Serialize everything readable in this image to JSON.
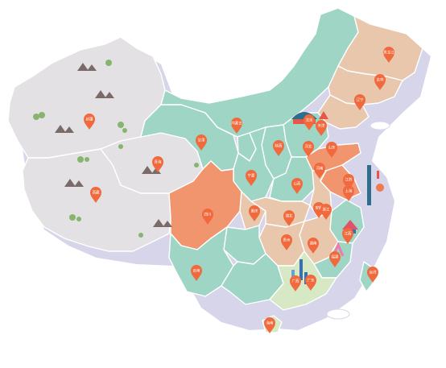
{
  "palette": {
    "gray": "#e3e1e3",
    "teal": "#9ed5c5",
    "tan": "#e8c7ad",
    "orange": "#f1956e",
    "deep_orange": "#ee7a4e",
    "pale_green": "#d6e8c4",
    "pin": "#f06a3d",
    "shadow": "#cfcde6",
    "mountain": "#7a6a68",
    "tree": "#86b56f"
  },
  "map": {
    "provinces": [
      {
        "id": "xinjiang",
        "tone": "gray"
      },
      {
        "id": "tibet",
        "tone": "gray"
      },
      {
        "id": "qinghai",
        "tone": "gray"
      },
      {
        "id": "gansu",
        "tone": "teal"
      },
      {
        "id": "inner-mongolia",
        "tone": "teal"
      },
      {
        "id": "heilongjiang",
        "tone": "tan"
      },
      {
        "id": "jilin",
        "tone": "tan"
      },
      {
        "id": "liaoning",
        "tone": "tan"
      },
      {
        "id": "ningxia",
        "tone": "teal"
      },
      {
        "id": "shaanxi",
        "tone": "teal"
      },
      {
        "id": "shanxi",
        "tone": "teal"
      },
      {
        "id": "hebei",
        "tone": "teal"
      },
      {
        "id": "shandong",
        "tone": "orange"
      },
      {
        "id": "henan",
        "tone": "teal"
      },
      {
        "id": "jiangsu",
        "tone": "orange"
      },
      {
        "id": "anhui",
        "tone": "tan"
      },
      {
        "id": "sichuan",
        "tone": "orange"
      },
      {
        "id": "chongqing",
        "tone": "tan"
      },
      {
        "id": "hubei",
        "tone": "tan"
      },
      {
        "id": "zhejiang",
        "tone": "teal"
      },
      {
        "id": "yunnan",
        "tone": "teal"
      },
      {
        "id": "guizhou",
        "tone": "teal"
      },
      {
        "id": "hunan",
        "tone": "tan"
      },
      {
        "id": "jiangxi",
        "tone": "tan"
      },
      {
        "id": "fujian",
        "tone": "teal"
      },
      {
        "id": "guangxi",
        "tone": "teal"
      },
      {
        "id": "guangdong",
        "tone": "pale_green"
      },
      {
        "id": "hainan",
        "tone": "pale_green"
      },
      {
        "id": "taiwan",
        "tone": "teal"
      }
    ],
    "pins": [
      {
        "id": "xinjiang",
        "label": "新疆"
      },
      {
        "id": "tibet",
        "label": "西藏"
      },
      {
        "id": "qinghai",
        "label": "青海"
      },
      {
        "id": "gansu",
        "label": "甘肃"
      },
      {
        "id": "inner-mongolia",
        "label": "内蒙古"
      },
      {
        "id": "heilongjiang",
        "label": "黑龙江"
      },
      {
        "id": "jilin",
        "label": "吉林"
      },
      {
        "id": "liaoning",
        "label": "辽宁"
      },
      {
        "id": "beijing",
        "label": "北京"
      },
      {
        "id": "tianjin",
        "label": "天津"
      },
      {
        "id": "ningxia",
        "label": "宁夏"
      },
      {
        "id": "shaanxi",
        "label": "陕西"
      },
      {
        "id": "shanxi",
        "label": "山西"
      },
      {
        "id": "hebei",
        "label": "河北"
      },
      {
        "id": "shandong",
        "label": "山东"
      },
      {
        "id": "henan",
        "label": "河南"
      },
      {
        "id": "jiangsu",
        "label": "江苏"
      },
      {
        "id": "anhui",
        "label": "安徽"
      },
      {
        "id": "shanghai",
        "label": "上海"
      },
      {
        "id": "sichuan",
        "label": "四川"
      },
      {
        "id": "chongqing",
        "label": "重庆"
      },
      {
        "id": "hubei",
        "label": "湖北"
      },
      {
        "id": "zhejiang",
        "label": "浙江"
      },
      {
        "id": "yunnan",
        "label": "云南"
      },
      {
        "id": "guizhou",
        "label": "贵州"
      },
      {
        "id": "hunan",
        "label": "湖南"
      },
      {
        "id": "jiangxi",
        "label": "江西"
      },
      {
        "id": "fujian",
        "label": "福建"
      },
      {
        "id": "guangxi",
        "label": "广西"
      },
      {
        "id": "guangdong",
        "label": "广东"
      },
      {
        "id": "hainan",
        "label": "海南"
      },
      {
        "id": "taiwan",
        "label": "台湾"
      }
    ]
  }
}
